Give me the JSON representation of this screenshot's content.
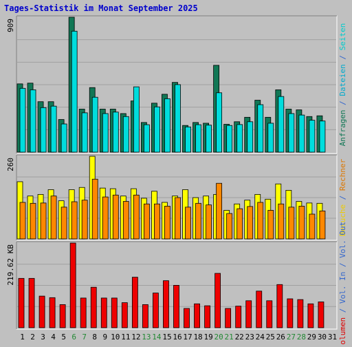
{
  "chart_data": {
    "type": "bar",
    "title": "Tages-Statistik im Monat September 2025",
    "categories": [
      "1",
      "2",
      "3",
      "4",
      "5",
      "6",
      "7",
      "8",
      "9",
      "10",
      "11",
      "12",
      "13",
      "14",
      "15",
      "16",
      "17",
      "18",
      "19",
      "20",
      "21",
      "22",
      "23",
      "24",
      "25",
      "26",
      "27",
      "28",
      "29",
      "30",
      "31"
    ],
    "weekend_days": [
      "6",
      "7",
      "13",
      "14",
      "20",
      "21",
      "27",
      "28"
    ],
    "panels": [
      {
        "id": "requests-pages",
        "max_label": "909",
        "ylim": [
          0,
          909
        ],
        "series": [
          {
            "name": "Anfragen",
            "color": "#117755",
            "values": [
              460,
              465,
              340,
              340,
              220,
              909,
              290,
              435,
              290,
              290,
              260,
              345,
              200,
              330,
              390,
              470,
              180,
              200,
              195,
              585,
              188,
              205,
              235,
              350,
              235,
              420,
              290,
              285,
              240,
              245,
              null
            ]
          },
          {
            "name": "Dateien",
            "color": "#00dddd",
            "values": [
              430,
              420,
              300,
              310,
              190,
              815,
              265,
              370,
              260,
              270,
              240,
              440,
              185,
              305,
              360,
              455,
              170,
              185,
              182,
              400,
              180,
              186,
              205,
              320,
              195,
              375,
              260,
              250,
              215,
              210,
              null
            ]
          }
        ],
        "right_label": [
          "Anfragen",
          " / ",
          "Dateien",
          " / ",
          "Seiten"
        ],
        "right_colors": [
          "#117755",
          "#3366cc",
          "#00aacc",
          "#3366cc",
          "#00cccc"
        ]
      },
      {
        "id": "visits",
        "max_label": "260",
        "ylim": [
          0,
          260
        ],
        "series": [
          {
            "name": "Besuche",
            "color": "#ffff00",
            "values": [
              180,
              135,
              140,
              155,
              120,
              155,
              162,
              260,
              160,
              158,
              135,
              158,
              128,
              150,
              115,
              135,
              155,
              130,
              135,
              140,
              90,
              110,
              122,
              140,
              125,
              173,
              153,
              118,
              113,
              112,
              null
            ]
          },
          {
            "name": "Rechner",
            "color": "#ff8800",
            "values": [
              115,
              112,
              113,
              135,
              100,
              117,
              122,
              188,
              132,
              138,
              118,
              138,
              110,
              110,
              103,
              130,
              100,
              112,
              107,
              175,
              80,
              95,
              102,
              115,
              90,
              110,
              100,
              103,
              78,
              88,
              null
            ]
          }
        ],
        "right_label": [
          "Besuche",
          " / ",
          "Rechner"
        ],
        "right_colors": [
          "#eecc00",
          "#3366cc",
          "#dd7700"
        ]
      },
      {
        "id": "volume",
        "max_label": "219.62 KB",
        "ylim": [
          0,
          219.62
        ],
        "series": [
          {
            "name": "Volumen",
            "color": "#ee0000",
            "values": [
              128,
              128,
              82,
              78,
              60,
              219.62,
              77,
              105,
              77,
              77,
              65,
              131,
              60,
              90,
              122,
              110,
              50,
              62,
              57,
              141,
              50,
              56,
              70,
              95,
              70,
              112,
              75,
              73,
              62,
              67,
              null
            ]
          }
        ],
        "right_label": [
          "Volumen",
          " / ",
          "Vol. In",
          " / ",
          "Vol. Out"
        ],
        "right_colors": [
          "#dd0000",
          "#3366cc",
          "#3366cc",
          "#3366cc",
          "#3366cc"
        ]
      }
    ],
    "grid": true
  }
}
